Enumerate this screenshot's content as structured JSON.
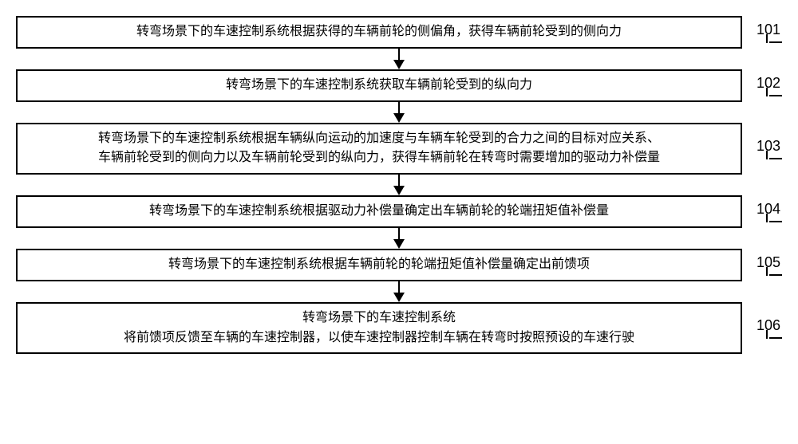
{
  "flow": {
    "box_border_color": "#000000",
    "box_bg_color": "#ffffff",
    "text_color": "#000000",
    "font_size_pt": 12,
    "arrow_color": "#000000",
    "steps": [
      {
        "num": "101",
        "lines": [
          "转弯场景下的车速控制系统根据获得的车辆前轮的侧偏角，获得车辆前轮受到的侧向力"
        ]
      },
      {
        "num": "102",
        "lines": [
          "转弯场景下的车速控制系统获取车辆前轮受到的纵向力"
        ]
      },
      {
        "num": "103",
        "lines": [
          "转弯场景下的车速控制系统根据车辆纵向运动的加速度与车辆车轮受到的合力之间的目标对应关系、",
          "车辆前轮受到的侧向力以及车辆前轮受到的纵向力，获得车辆前轮在转弯时需要增加的驱动力补偿量"
        ]
      },
      {
        "num": "104",
        "lines": [
          "转弯场景下的车速控制系统根据驱动力补偿量确定出车辆前轮的轮端扭矩值补偿量"
        ]
      },
      {
        "num": "105",
        "lines": [
          "转弯场景下的车速控制系统根据车辆前轮的轮端扭矩值补偿量确定出前馈项"
        ]
      },
      {
        "num": "106",
        "lines": [
          "转弯场景下的车速控制系统",
          "将前馈项反馈至车辆的车速控制器，以使车速控制器控制车辆在转弯时按照预设的车速行驶"
        ]
      }
    ]
  }
}
